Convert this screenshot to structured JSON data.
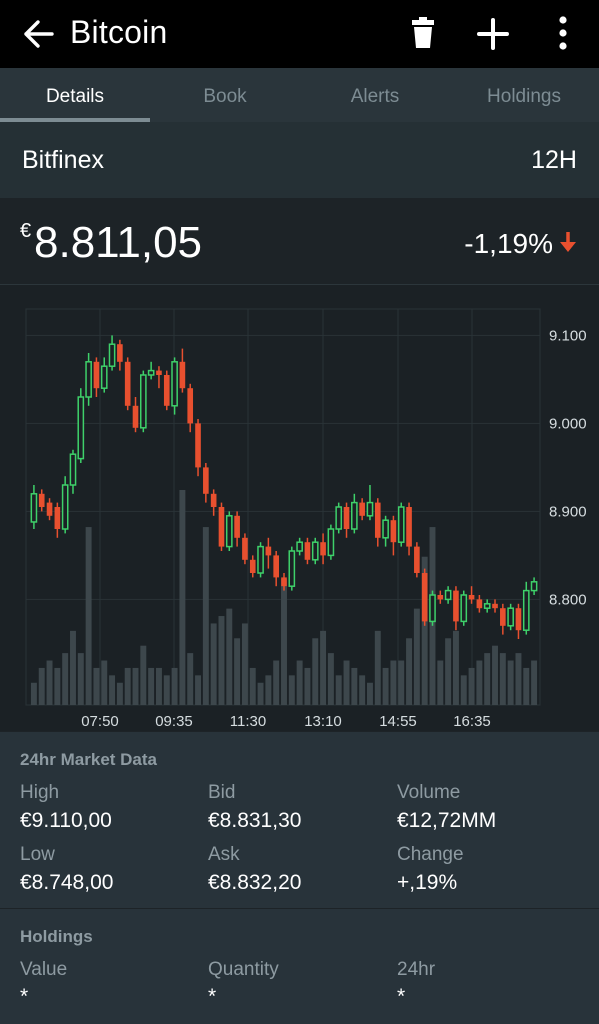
{
  "appbar": {
    "title": "Bitcoin",
    "icons": [
      "back-arrow-icon",
      "trash-icon",
      "plus-icon",
      "more-vert-icon"
    ]
  },
  "tabs": [
    {
      "label": "Details"
    },
    {
      "label": "Book"
    },
    {
      "label": "Alerts"
    },
    {
      "label": "Holdings"
    }
  ],
  "exchange": {
    "name": "Bitfinex",
    "interval": "12H"
  },
  "price": {
    "currency": "€",
    "value": "8.811,05",
    "change": "-1,19%",
    "change_color": "#e8502f"
  },
  "chart_data": {
    "type": "candlestick",
    "ylim": [
      8680,
      9130
    ],
    "yticks": [
      {
        "v": 9100,
        "label": "9.100"
      },
      {
        "v": 9000,
        "label": "9.000"
      },
      {
        "v": 8900,
        "label": "8.900"
      },
      {
        "v": 8800,
        "label": "8.800"
      }
    ],
    "xticks": [
      "07:50",
      "09:35",
      "11:30",
      "13:10",
      "14:55",
      "16:35"
    ],
    "colors": {
      "up": "#3ed16a",
      "down": "#e8502f",
      "volume": "#3d474c",
      "grid": "#2a3337"
    },
    "candles": [
      [
        8888,
        8920,
        8880,
        8930
      ],
      [
        8920,
        8905,
        8900,
        8925
      ],
      [
        8910,
        8895,
        8890,
        8915
      ],
      [
        8905,
        8880,
        8870,
        8910
      ],
      [
        8880,
        8930,
        8875,
        8940
      ],
      [
        8930,
        8965,
        8920,
        8970
      ],
      [
        8960,
        9030,
        8955,
        9040
      ],
      [
        9030,
        9070,
        9020,
        9080
      ],
      [
        9070,
        9040,
        9030,
        9075
      ],
      [
        9040,
        9065,
        9035,
        9075
      ],
      [
        9065,
        9090,
        9060,
        9100
      ],
      [
        9090,
        9070,
        9060,
        9095
      ],
      [
        9070,
        9020,
        9015,
        9075
      ],
      [
        9020,
        8995,
        8990,
        9030
      ],
      [
        8995,
        9055,
        8990,
        9060
      ],
      [
        9055,
        9060,
        9050,
        9070
      ],
      [
        9060,
        9055,
        9040,
        9065
      ],
      [
        9055,
        9020,
        9015,
        9060
      ],
      [
        9020,
        9070,
        9010,
        9075
      ],
      [
        9070,
        9040,
        9035,
        9085
      ],
      [
        9040,
        9000,
        8990,
        9045
      ],
      [
        9000,
        8950,
        8940,
        9005
      ],
      [
        8950,
        8920,
        8910,
        8955
      ],
      [
        8920,
        8905,
        8895,
        8925
      ],
      [
        8905,
        8860,
        8855,
        8910
      ],
      [
        8860,
        8895,
        8855,
        8900
      ],
      [
        8895,
        8870,
        8860,
        8900
      ],
      [
        8870,
        8845,
        8840,
        8875
      ],
      [
        8845,
        8830,
        8825,
        8850
      ],
      [
        8830,
        8860,
        8825,
        8865
      ],
      [
        8860,
        8850,
        8835,
        8870
      ],
      [
        8850,
        8825,
        8815,
        8855
      ],
      [
        8825,
        8815,
        8810,
        8830
      ],
      [
        8815,
        8855,
        8810,
        8860
      ],
      [
        8855,
        8865,
        8850,
        8870
      ],
      [
        8865,
        8845,
        8840,
        8870
      ],
      [
        8845,
        8865,
        8840,
        8870
      ],
      [
        8865,
        8850,
        8840,
        8875
      ],
      [
        8850,
        8880,
        8845,
        8885
      ],
      [
        8880,
        8905,
        8875,
        8910
      ],
      [
        8905,
        8880,
        8870,
        8910
      ],
      [
        8880,
        8910,
        8875,
        8920
      ],
      [
        8910,
        8895,
        8890,
        8915
      ],
      [
        8895,
        8910,
        8890,
        8930
      ],
      [
        8910,
        8870,
        8860,
        8915
      ],
      [
        8870,
        8890,
        8860,
        8895
      ],
      [
        8890,
        8865,
        8850,
        8895
      ],
      [
        8865,
        8905,
        8860,
        8910
      ],
      [
        8905,
        8860,
        8850,
        8910
      ],
      [
        8860,
        8830,
        8825,
        8865
      ],
      [
        8830,
        8775,
        8770,
        8835
      ],
      [
        8775,
        8805,
        8770,
        8810
      ],
      [
        8805,
        8800,
        8795,
        8810
      ],
      [
        8800,
        8810,
        8795,
        8815
      ],
      [
        8810,
        8775,
        8765,
        8815
      ],
      [
        8775,
        8805,
        8770,
        8810
      ],
      [
        8805,
        8800,
        8795,
        8815
      ],
      [
        8800,
        8790,
        8785,
        8805
      ],
      [
        8790,
        8795,
        8785,
        8800
      ],
      [
        8795,
        8790,
        8785,
        8800
      ],
      [
        8790,
        8770,
        8760,
        8795
      ],
      [
        8770,
        8790,
        8765,
        8795
      ],
      [
        8790,
        8765,
        8755,
        8795
      ],
      [
        8765,
        8810,
        8760,
        8820
      ],
      [
        8810,
        8820,
        8805,
        8825
      ]
    ],
    "volumes": [
      3,
      5,
      6,
      5,
      7,
      10,
      7,
      24,
      5,
      6,
      4,
      3,
      5,
      5,
      8,
      5,
      5,
      4,
      5,
      29,
      7,
      4,
      24,
      11,
      12,
      13,
      9,
      11,
      5,
      3,
      4,
      6,
      17,
      4,
      6,
      5,
      9,
      10,
      7,
      4,
      6,
      5,
      4,
      3,
      10,
      5,
      6,
      6,
      9,
      13,
      20,
      24,
      6,
      9,
      10,
      4,
      5,
      6,
      7,
      8,
      7,
      6,
      7,
      5,
      6
    ]
  },
  "market": {
    "title": "24hr Market Data",
    "items": [
      {
        "label": "High",
        "value": "€9.110,00"
      },
      {
        "label": "Bid",
        "value": "€8.831,30"
      },
      {
        "label": "Volume",
        "value": "€12,72MM"
      },
      {
        "label": "Low",
        "value": "€8.748,00"
      },
      {
        "label": "Ask",
        "value": "€8.832,20"
      },
      {
        "label": "Change",
        "value": "+,19%"
      }
    ]
  },
  "holdings": {
    "title": "Holdings",
    "items": [
      {
        "label": "Value",
        "value": "*"
      },
      {
        "label": "Quantity",
        "value": "*"
      },
      {
        "label": "24hr",
        "value": "*"
      }
    ]
  }
}
